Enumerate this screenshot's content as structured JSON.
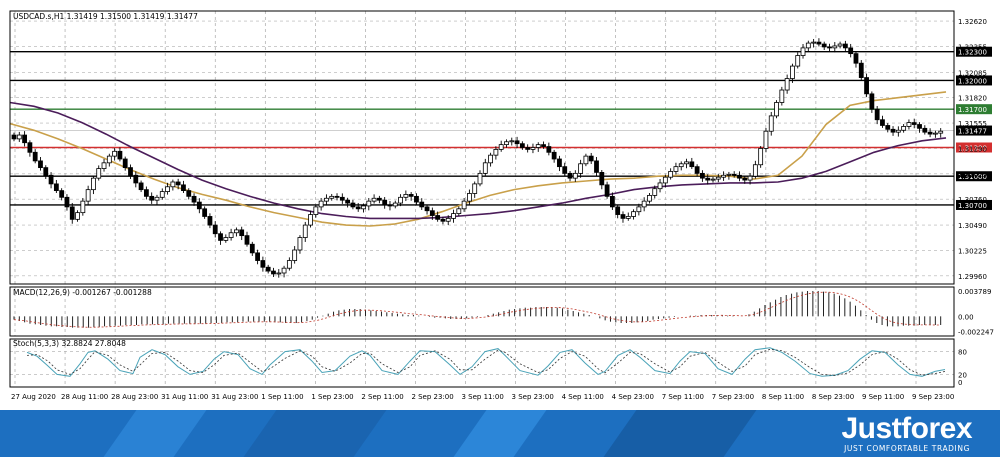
{
  "chart_data": [
    {
      "type": "candlestick",
      "title": "USDCAD.s,H1  1.31419 1.31500 1.31419 1.31477",
      "symbol": "USDCAD.s,H1",
      "ohlc_last": [
        1.31419,
        1.315,
        1.31419,
        1.31477
      ],
      "y_ticks": [
        "1.32620",
        "1.32355",
        "1.32085",
        "1.31820",
        "1.31555",
        "1.31290",
        "1.31025",
        "1.30760",
        "1.30490",
        "1.30225",
        "1.29960"
      ],
      "x_ticks": [
        "27 Aug 2020",
        "28 Aug 11:00",
        "28 Aug 23:00",
        "31 Aug 11:00",
        "31 Aug 23:00",
        "1 Sep 11:00",
        "1 Sep 23:00",
        "2 Sep 11:00",
        "2 Sep 23:00",
        "3 Sep 11:00",
        "3 Sep 23:00",
        "4 Sep 11:00",
        "4 Sep 23:00",
        "7 Sep 11:00",
        "7 Sep 23:00",
        "8 Sep 11:00",
        "8 Sep 23:00",
        "9 Sep 11:00",
        "9 Sep 23:00"
      ],
      "ylim": [
        1.29875,
        1.32725
      ],
      "grid": true,
      "candle_closes": [
        1.3139,
        1.3143,
        1.3135,
        1.3125,
        1.3116,
        1.3109,
        1.3101,
        1.3092,
        1.3085,
        1.3078,
        1.3068,
        1.3055,
        1.3062,
        1.3074,
        1.3086,
        1.3098,
        1.3108,
        1.3114,
        1.3121,
        1.3126,
        1.3118,
        1.3109,
        1.3101,
        1.3093,
        1.3086,
        1.3079,
        1.3075,
        1.3078,
        1.3084,
        1.3089,
        1.3094,
        1.3091,
        1.3085,
        1.3079,
        1.3073,
        1.3066,
        1.3058,
        1.3049,
        1.304,
        1.3033,
        1.3036,
        1.3041,
        1.3044,
        1.3038,
        1.3029,
        1.302,
        1.3012,
        1.3005,
        1.3001,
        1.2998,
        1.2999,
        1.3004,
        1.3012,
        1.3023,
        1.3036,
        1.3049,
        1.306,
        1.3068,
        1.3074,
        1.3077,
        1.3079,
        1.3078,
        1.3075,
        1.3072,
        1.3068,
        1.3066,
        1.3069,
        1.3074,
        1.3077,
        1.3075,
        1.307,
        1.3069,
        1.3072,
        1.3078,
        1.3081,
        1.3079,
        1.3073,
        1.3068,
        1.3064,
        1.3059,
        1.3055,
        1.3053,
        1.3056,
        1.3061,
        1.3066,
        1.3074,
        1.3082,
        1.3092,
        1.3103,
        1.3114,
        1.3122,
        1.3128,
        1.3133,
        1.3136,
        1.3137,
        1.3134,
        1.313,
        1.3128,
        1.313,
        1.3133,
        1.3131,
        1.3125,
        1.3118,
        1.311,
        1.3103,
        1.3098,
        1.3103,
        1.3113,
        1.3121,
        1.3116,
        1.3104,
        1.3091,
        1.3079,
        1.3068,
        1.306,
        1.3056,
        1.3058,
        1.3063,
        1.3068,
        1.3074,
        1.308,
        1.3087,
        1.3093,
        1.3099,
        1.3105,
        1.311,
        1.3113,
        1.3115,
        1.311,
        1.3103,
        1.3098,
        1.3096,
        1.3097,
        1.3099,
        1.3101,
        1.3102,
        1.3101,
        1.3098,
        1.3096,
        1.31,
        1.3112,
        1.3129,
        1.3147,
        1.3163,
        1.3177,
        1.319,
        1.3202,
        1.3215,
        1.3226,
        1.3234,
        1.3239,
        1.324,
        1.3238,
        1.3235,
        1.3234,
        1.3236,
        1.3238,
        1.3234,
        1.3228,
        1.3218,
        1.3203,
        1.3186,
        1.317,
        1.3159,
        1.3153,
        1.3149,
        1.3146,
        1.3148,
        1.3152,
        1.3156,
        1.3154,
        1.315,
        1.3146,
        1.3144,
        1.3145,
        1.3147
      ],
      "moving_averages": [
        {
          "color": "#c9a04a",
          "values": [
            1.3155,
            1.3148,
            1.3139,
            1.3129,
            1.3118,
            1.3107,
            1.3097,
            1.3088,
            1.3081,
            1.3075,
            1.3068,
            1.3062,
            1.3057,
            1.3052,
            1.3049,
            1.3048,
            1.305,
            1.3055,
            1.3063,
            1.3072,
            1.308,
            1.3086,
            1.309,
            1.3093,
            1.3095,
            1.3097,
            1.3098,
            1.31,
            1.3101,
            1.3101,
            1.31,
            1.3097,
            1.3101,
            1.3121,
            1.3154,
            1.3174,
            1.3179,
            1.3182,
            1.3185,
            1.3188
          ]
        },
        {
          "color": "#4b1d5a",
          "values": [
            1.3177,
            1.3173,
            1.3166,
            1.3156,
            1.3144,
            1.3131,
            1.3119,
            1.3107,
            1.3096,
            1.3087,
            1.3079,
            1.3072,
            1.3066,
            1.3061,
            1.3058,
            1.3056,
            1.3056,
            1.3056,
            1.3057,
            1.3059,
            1.3061,
            1.3064,
            1.3068,
            1.3072,
            1.3077,
            1.3081,
            1.3086,
            1.3089,
            1.3091,
            1.3092,
            1.3093,
            1.3093,
            1.3094,
            1.3098,
            1.3105,
            1.3115,
            1.3125,
            1.3132,
            1.3137,
            1.314
          ]
        }
      ],
      "levels": [
        {
          "label": "1.32300",
          "value": 1.323,
          "color": "#000000"
        },
        {
          "label": "1.32000",
          "value": 1.32,
          "color": "#000000"
        },
        {
          "label": "1.31700",
          "value": 1.317,
          "color": "#2e7d32"
        },
        {
          "label": "1.31477",
          "value": 1.31477,
          "color": "#000000"
        },
        {
          "label": "1.31300",
          "value": 1.313,
          "color": "#d32f2f"
        },
        {
          "label": "1.31000",
          "value": 1.31,
          "color": "#000000"
        },
        {
          "label": "1.30700",
          "value": 1.307,
          "color": "#000000"
        }
      ]
    },
    {
      "type": "bar",
      "title": "MACD(12,26,9) -0.001267 -0.001288",
      "y_ticks": [
        "0.003789",
        "0.00",
        "-0.002247"
      ],
      "ylim": [
        -0.00295,
        0.0044
      ],
      "histogram": [
        -0.0005,
        -0.0007,
        -0.0009,
        -0.0011,
        -0.0012,
        -0.0013,
        -0.0014,
        -0.0015,
        -0.0015,
        -0.0016,
        -0.0016,
        -0.0017,
        -0.0017,
        -0.0017,
        -0.0017,
        -0.0016,
        -0.0016,
        -0.0015,
        -0.0015,
        -0.0014,
        -0.0014,
        -0.0013,
        -0.0013,
        -0.0013,
        -0.0012,
        -0.0012,
        -0.0012,
        -0.0012,
        -0.0012,
        -0.0011,
        -0.0011,
        -0.0011,
        -0.0011,
        -0.0011,
        -0.0011,
        -0.0011,
        -0.0011,
        -0.001,
        -0.001,
        -0.001,
        -0.0009,
        -0.0009,
        -0.0009,
        -0.0008,
        -0.0008,
        -0.0008,
        -0.0008,
        -0.0008,
        -0.0008,
        -0.0009,
        -0.0009,
        -0.001,
        -0.001,
        -0.001,
        -0.0009,
        -0.0007,
        -0.0005,
        -0.0002,
        0.0001,
        0.0004,
        0.0007,
        0.0009,
        0.001,
        0.0011,
        0.0011,
        0.0011,
        0.001,
        0.0009,
        0.0008,
        0.0007,
        0.0006,
        0.0005,
        0.0004,
        0.0003,
        0.0002,
        0.0002,
        0.0001,
        0.0,
        -0.0001,
        -0.0002,
        -0.0002,
        -0.0003,
        -0.0004,
        -0.0004,
        -0.0004,
        -0.0003,
        -0.0002,
        -0.0001,
        0.0,
        0.0002,
        0.0004,
        0.0006,
        0.0008,
        0.001,
        0.0011,
        0.0012,
        0.0013,
        0.0013,
        0.0014,
        0.0014,
        0.0014,
        0.0014,
        0.0013,
        0.0012,
        0.001,
        0.0008,
        0.0006,
        0.0004,
        0.0002,
        0.0,
        -0.0003,
        -0.0006,
        -0.0008,
        -0.0009,
        -0.001,
        -0.001,
        -0.001,
        -0.0009,
        -0.0008,
        -0.0007,
        -0.0005,
        -0.0004,
        -0.0003,
        -0.0002,
        -0.0001,
        0.0,
        0.0,
        0.0001,
        0.0001,
        0.0002,
        0.0002,
        0.0002,
        0.0002,
        0.0002,
        0.0001,
        0.0001,
        0.0,
        0.0,
        0.0003,
        0.0007,
        0.0012,
        0.0017,
        0.0021,
        0.0025,
        0.0029,
        0.0032,
        0.0034,
        0.0036,
        0.0037,
        0.0038,
        0.0038,
        0.0038,
        0.0037,
        0.0036,
        0.0034,
        0.0031,
        0.0027,
        0.0022,
        0.0016,
        0.0009,
        0.0002,
        -0.0005,
        -0.001,
        -0.0013,
        -0.0015,
        -0.0015,
        -0.0015,
        -0.0014,
        -0.0014,
        -0.0014,
        -0.0013,
        -0.0013,
        -0.0013,
        -0.0013,
        -0.0013
      ]
    },
    {
      "type": "line",
      "title": "Stoch(5,3,3) 32.8824 27.8048",
      "y_ticks": [
        "80",
        "20",
        "0"
      ],
      "ylim": [
        0,
        100
      ],
      "x": [
        27,
        37,
        48,
        57,
        70,
        80,
        88,
        95,
        108,
        120,
        133,
        140,
        152,
        165,
        178,
        190,
        203,
        214,
        224,
        238,
        250,
        262,
        270,
        285,
        300,
        312,
        322,
        335,
        350,
        362,
        370,
        382,
        398,
        410,
        420,
        435,
        450,
        460,
        472,
        485,
        498,
        505,
        520,
        538,
        548,
        560,
        572,
        585,
        598,
        605,
        618,
        630,
        640,
        655,
        670,
        680,
        690,
        705,
        718,
        732,
        745,
        755,
        770,
        782,
        795,
        810,
        822,
        835,
        848,
        860,
        872,
        885,
        898,
        910,
        922,
        935,
        945
      ],
      "series": [
        {
          "values": [
            78,
            68,
            42,
            20,
            15,
            48,
            78,
            82,
            60,
            30,
            22,
            65,
            85,
            72,
            40,
            20,
            28,
            60,
            80,
            72,
            35,
            20,
            45,
            80,
            85,
            55,
            25,
            30,
            68,
            82,
            70,
            30,
            20,
            55,
            82,
            80,
            45,
            20,
            40,
            80,
            88,
            70,
            30,
            18,
            42,
            78,
            85,
            50,
            20,
            28,
            70,
            85,
            65,
            30,
            22,
            55,
            80,
            75,
            35,
            20,
            60,
            85,
            90,
            78,
            55,
            22,
            15,
            18,
            30,
            60,
            82,
            78,
            45,
            20,
            15,
            28,
            33
          ]
        },
        {
          "values": [
            70,
            72,
            55,
            32,
            20,
            35,
            60,
            80,
            70,
            45,
            28,
            45,
            75,
            78,
            55,
            30,
            25,
            45,
            70,
            76,
            52,
            28,
            35,
            62,
            82,
            68,
            40,
            28,
            50,
            75,
            76,
            48,
            25,
            40,
            70,
            82,
            60,
            32,
            32,
            60,
            84,
            78,
            48,
            25,
            32,
            62,
            80,
            68,
            35,
            24,
            50,
            78,
            75,
            48,
            26,
            40,
            68,
            78,
            52,
            28,
            42,
            72,
            86,
            82,
            65,
            38,
            20,
            17,
            24,
            45,
            72,
            80,
            60,
            32,
            18,
            22,
            28
          ]
        }
      ]
    }
  ],
  "footer": {
    "brand": "Justforex",
    "tagline": "JUST COMFORTABLE TRADING",
    "bg_color": "#1d6fc0"
  }
}
